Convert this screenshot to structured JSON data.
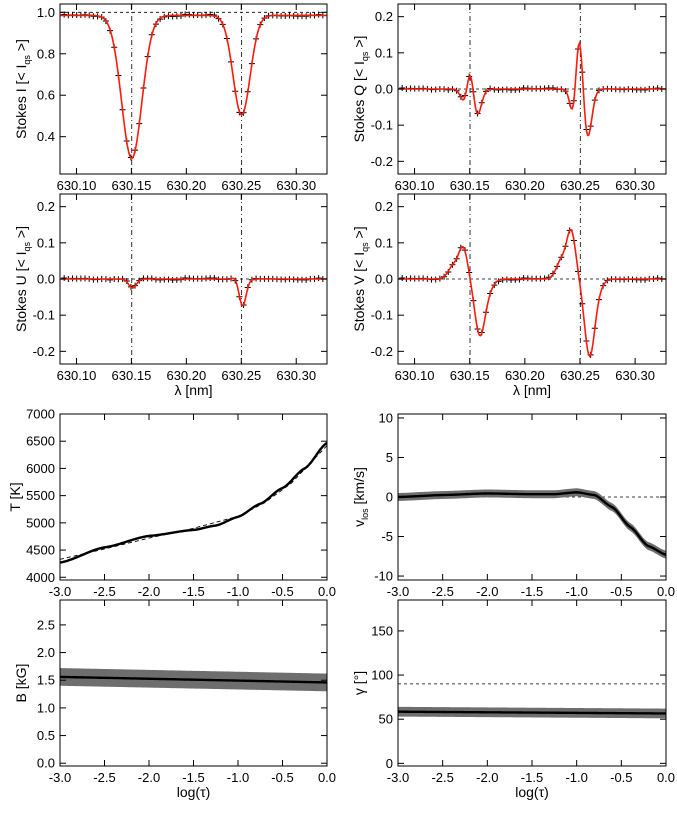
{
  "chart_data": [
    {
      "id": "stokes-i",
      "type": "line",
      "ylabel": "Stokes I [< I_qs >]",
      "ylabel_main": "Stokes I [< I",
      "ylabel_sub": "qs",
      "ylabel_end": " >]",
      "xlabel": "",
      "xlim": [
        630.085,
        630.328
      ],
      "ylim": [
        0.22,
        1.04
      ],
      "xticks": [
        630.1,
        630.15,
        630.2,
        630.25,
        630.3
      ],
      "xtick_labels": [
        "630.10",
        "630.15",
        "630.20",
        "630.25",
        "630.30"
      ],
      "yticks": [
        0.4,
        0.6,
        0.8,
        1.0
      ],
      "ytick_labels": [
        "0.4",
        "0.6",
        "0.8",
        "1.0"
      ],
      "refs": {
        "h": [
          1.0
        ],
        "v": [
          630.1503,
          630.2503
        ]
      },
      "model": {
        "cont": 0.985,
        "lines": [
          {
            "c": 630.1503,
            "depth": 0.69,
            "w": 0.0092
          },
          {
            "c": 630.2503,
            "depth": 0.48,
            "w": 0.0078
          }
        ]
      },
      "series": [
        {
          "color": "#ff1a0a",
          "kind": "fit"
        },
        {
          "color": "#000000",
          "kind": "observed"
        }
      ]
    },
    {
      "id": "stokes-q",
      "type": "line",
      "ylabel": "Stokes Q [< I_qs >]",
      "ylabel_main": "Stokes Q [< I",
      "ylabel_sub": "qs",
      "ylabel_end": " >]",
      "xlabel": "",
      "xlim": [
        630.085,
        630.328
      ],
      "ylim": [
        -0.235,
        0.235
      ],
      "xticks": [
        630.1,
        630.15,
        630.2,
        630.25,
        630.3
      ],
      "xtick_labels": [
        "630.10",
        "630.15",
        "630.20",
        "630.25",
        "630.30"
      ],
      "yticks": [
        -0.2,
        -0.1,
        0.0,
        0.1,
        0.2
      ],
      "ytick_labels": [
        "-0.2",
        "-0.1",
        "0.0",
        "0.1",
        "0.2"
      ],
      "refs": {
        "h": [
          0.0
        ],
        "v": [
          630.1503,
          630.2503
        ]
      },
      "model": {
        "cont": 0,
        "lines": [
          {
            "c": 630.1455,
            "depth": 0.04,
            "w": 0.0035
          },
          {
            "c": 630.1505,
            "depth": -0.07,
            "w": 0.003
          },
          {
            "c": 630.1567,
            "depth": 0.075,
            "w": 0.0038
          },
          {
            "c": 630.244,
            "depth": 0.08,
            "w": 0.003
          },
          {
            "c": 630.2495,
            "depth": -0.17,
            "w": 0.0032
          },
          {
            "c": 630.2566,
            "depth": 0.14,
            "w": 0.004
          }
        ]
      },
      "series": [
        {
          "color": "#ff1a0a",
          "kind": "fit"
        },
        {
          "color": "#000000",
          "kind": "observed"
        }
      ]
    },
    {
      "id": "stokes-u",
      "type": "line",
      "ylabel": "Stokes U [< I_qs >]",
      "ylabel_main": "Stokes U [< I",
      "ylabel_sub": "qs",
      "ylabel_end": " >]",
      "xlabel": "λ [nm]",
      "xlim": [
        630.085,
        630.328
      ],
      "ylim": [
        -0.235,
        0.235
      ],
      "xticks": [
        630.1,
        630.15,
        630.2,
        630.25,
        630.3
      ],
      "xtick_labels": [
        "630.10",
        "630.15",
        "630.20",
        "630.25",
        "630.30"
      ],
      "yticks": [
        -0.2,
        -0.1,
        0.0,
        0.1,
        0.2
      ],
      "ytick_labels": [
        "-0.2",
        "-0.1",
        "0.0",
        "0.1",
        "0.2"
      ],
      "refs": {
        "h": [
          0.0
        ],
        "v": [
          630.1503,
          630.2503
        ]
      },
      "model": {
        "cont": 0,
        "lines": [
          {
            "c": 630.151,
            "depth": 0.025,
            "w": 0.0035
          },
          {
            "c": 630.246,
            "depth": -0.012,
            "w": 0.003
          },
          {
            "c": 630.2512,
            "depth": 0.078,
            "w": 0.0036
          },
          {
            "c": 630.2555,
            "depth": -0.008,
            "w": 0.0025
          }
        ]
      },
      "series": [
        {
          "color": "#ff1a0a",
          "kind": "fit"
        },
        {
          "color": "#000000",
          "kind": "observed"
        }
      ]
    },
    {
      "id": "stokes-v",
      "type": "line",
      "ylabel": "Stokes V [< I_qs >]",
      "ylabel_main": "Stokes V [< I",
      "ylabel_sub": "qs",
      "ylabel_end": " >]",
      "xlabel": "λ [nm]",
      "xlim": [
        630.085,
        630.328
      ],
      "ylim": [
        -0.235,
        0.235
      ],
      "xticks": [
        630.1,
        630.15,
        630.2,
        630.25,
        630.3
      ],
      "xtick_labels": [
        "630.10",
        "630.15",
        "630.20",
        "630.25",
        "630.30"
      ],
      "yticks": [
        -0.2,
        -0.1,
        0.0,
        0.1,
        0.2
      ],
      "ytick_labels": [
        "-0.2",
        "-0.1",
        "0.0",
        "0.1",
        "0.2"
      ],
      "refs": {
        "h": [
          0.0
        ],
        "v": [
          630.1503,
          630.2503
        ]
      },
      "model": {
        "cont": 0,
        "lines": [
          {
            "c": 630.135,
            "depth": -0.035,
            "w": 0.0045
          },
          {
            "c": 630.144,
            "depth": -0.085,
            "w": 0.004
          },
          {
            "c": 630.159,
            "depth": 0.145,
            "w": 0.0045
          },
          {
            "c": 630.166,
            "depth": 0.03,
            "w": 0.005
          },
          {
            "c": 630.233,
            "depth": -0.05,
            "w": 0.0045
          },
          {
            "c": 630.242,
            "depth": -0.13,
            "w": 0.004
          },
          {
            "c": 630.2585,
            "depth": 0.2,
            "w": 0.0045
          },
          {
            "c": 630.265,
            "depth": 0.03,
            "w": 0.005
          }
        ]
      },
      "series": [
        {
          "color": "#ff1a0a",
          "kind": "fit"
        },
        {
          "color": "#000000",
          "kind": "observed"
        }
      ]
    },
    {
      "id": "temperature",
      "type": "line",
      "ylabel": "T [K]",
      "xlabel": "",
      "xlim": [
        -3.0,
        0.0
      ],
      "ylim": [
        3950,
        7000
      ],
      "xticks": [
        -3.0,
        -2.5,
        -2.0,
        -1.5,
        -1.0,
        -0.5,
        0.0
      ],
      "xtick_labels": [
        "-3.0",
        "-2.5",
        "-2.0",
        "-1.5",
        "-1.0",
        "-0.5",
        "0.0"
      ],
      "yticks": [
        4000,
        4500,
        5000,
        5500,
        6000,
        6500,
        7000
      ],
      "ytick_labels": [
        "4000",
        "4500",
        "5000",
        "5500",
        "6000",
        "6500",
        "7000"
      ],
      "series": [
        {
          "kind": "dashed",
          "x": [
            -3.0,
            -2.5,
            -2.0,
            -1.5,
            -1.0,
            -0.7,
            -0.4,
            0.0
          ],
          "y": [
            4330,
            4520,
            4720,
            4900,
            5120,
            5370,
            5730,
            6420
          ]
        },
        {
          "kind": "band",
          "width": 20,
          "x": [
            -3.0,
            -2.5,
            -2.0,
            -1.5,
            -1.25,
            -1.0,
            -0.75,
            -0.5,
            -0.25,
            0.0
          ],
          "y": [
            4270,
            4550,
            4760,
            4870,
            4950,
            5110,
            5350,
            5640,
            6000,
            6470
          ]
        },
        {
          "kind": "solid",
          "x": [
            -3.0,
            -2.5,
            -2.0,
            -1.5,
            -1.25,
            -1.0,
            -0.75,
            -0.5,
            -0.25,
            0.0
          ],
          "y": [
            4270,
            4550,
            4760,
            4870,
            4950,
            5110,
            5350,
            5640,
            6000,
            6470
          ]
        }
      ]
    },
    {
      "id": "velocity",
      "type": "line",
      "ylabel": "v_los [km/s]",
      "ylabel_main": "v",
      "ylabel_sub": "los",
      "ylabel_end": " [km/s]",
      "xlabel": "",
      "xlim": [
        -3.0,
        0.0
      ],
      "ylim": [
        -10.5,
        10.5
      ],
      "xticks": [
        -3.0,
        -2.5,
        -2.0,
        -1.5,
        -1.0,
        -0.5,
        0.0
      ],
      "xtick_labels": [
        "-3.0",
        "-2.5",
        "-2.0",
        "-1.5",
        "-1.0",
        "-0.5",
        "0.0"
      ],
      "yticks": [
        -10,
        -5,
        0,
        5,
        10
      ],
      "ytick_labels": [
        "-10",
        "-5",
        "0",
        "5",
        "10"
      ],
      "refs": {
        "h": [
          0.0
        ]
      },
      "series": [
        {
          "kind": "band",
          "width": 0.5,
          "x": [
            -3.0,
            -2.5,
            -2.0,
            -1.5,
            -1.25,
            -1.0,
            -0.8,
            -0.6,
            -0.4,
            -0.2,
            0.0
          ],
          "y": [
            0.0,
            0.25,
            0.45,
            0.35,
            0.35,
            0.6,
            0.25,
            -1.3,
            -3.8,
            -6.2,
            -7.3
          ]
        },
        {
          "kind": "solid",
          "x": [
            -3.0,
            -2.5,
            -2.0,
            -1.5,
            -1.25,
            -1.0,
            -0.8,
            -0.6,
            -0.4,
            -0.2,
            0.0
          ],
          "y": [
            0.0,
            0.25,
            0.45,
            0.35,
            0.35,
            0.6,
            0.25,
            -1.3,
            -3.8,
            -6.2,
            -7.3
          ]
        }
      ]
    },
    {
      "id": "field-strength",
      "type": "line",
      "ylabel": "B [kG]",
      "xlabel": "log(τ)",
      "xlim": [
        -3.0,
        0.0
      ],
      "ylim": [
        -0.05,
        2.95
      ],
      "xticks": [
        -3.0,
        -2.5,
        -2.0,
        -1.5,
        -1.0,
        -0.5,
        0.0
      ],
      "xtick_labels": [
        "-3.0",
        "-2.5",
        "-2.0",
        "-1.5",
        "-1.0",
        "-0.5",
        "0.0"
      ],
      "yticks": [
        0.0,
        0.5,
        1.0,
        1.5,
        2.0,
        2.5
      ],
      "ytick_labels": [
        "0.0",
        "0.5",
        "1.0",
        "1.5",
        "2.0",
        "2.5"
      ],
      "series": [
        {
          "kind": "band",
          "width": 0.16,
          "x": [
            -3.0,
            0.0
          ],
          "y": [
            1.56,
            1.46
          ]
        },
        {
          "kind": "solid",
          "x": [
            -3.0,
            0.0
          ],
          "y": [
            1.56,
            1.46
          ]
        }
      ]
    },
    {
      "id": "inclination",
      "type": "line",
      "ylabel": "γ [°]",
      "xlabel": "log(τ)",
      "xlim": [
        -3.0,
        0.0
      ],
      "ylim": [
        -3,
        185
      ],
      "xticks": [
        -3.0,
        -2.5,
        -2.0,
        -1.5,
        -1.0,
        -0.5,
        0.0
      ],
      "xtick_labels": [
        "-3.0",
        "-2.5",
        "-2.0",
        "-1.5",
        "-1.0",
        "-0.5",
        "0.0"
      ],
      "yticks": [
        0,
        50,
        100,
        150
      ],
      "ytick_labels": [
        "0",
        "50",
        "100",
        "150"
      ],
      "refs": {
        "h": [
          90
        ]
      },
      "series": [
        {
          "kind": "band",
          "width": 5.5,
          "x": [
            -3.0,
            0.0
          ],
          "y": [
            58.5,
            56.5
          ]
        },
        {
          "kind": "solid",
          "x": [
            -3.0,
            0.0
          ],
          "y": [
            58.5,
            56.5
          ]
        }
      ]
    }
  ]
}
